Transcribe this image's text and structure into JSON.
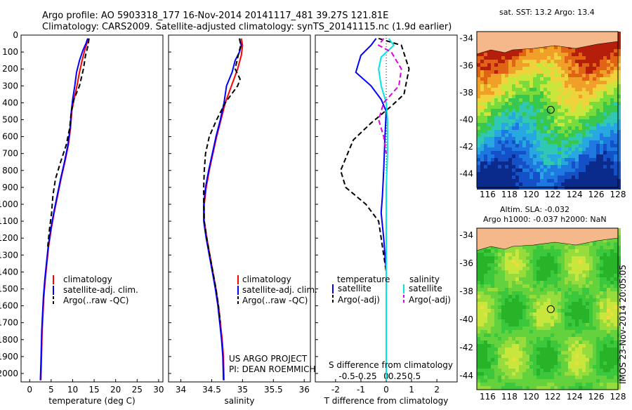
{
  "header": {
    "line1": "Argo profile: AO 5903318_177 16-Nov-2014 20141117_481 39.27S 121.81E",
    "line2": "Climatology: CARS2009. Satellite-adjusted climatology: synTS_20141115.nc (1.9d earlier)"
  },
  "side_text": "IMOS 23-Nov-2014 20:05:05",
  "credit": {
    "line1": "US ARGO PROJECT",
    "line2": "PI: DEAN ROEMMICH"
  },
  "colors": {
    "climatology": "#ff0000",
    "satellite": "#0000ff",
    "argo": "#000000",
    "sat_s": "#00e5e5",
    "argo_s": "#e000e0",
    "land": "#f4b88a"
  },
  "chart_data": [
    {
      "type": "line",
      "xlabel": "temperature (deg C)",
      "xticks": [
        0,
        5,
        10,
        15,
        20,
        25,
        30
      ],
      "xlim": [
        -2,
        31
      ],
      "ylim": [
        2050,
        0
      ],
      "yticks": [
        0,
        100,
        200,
        300,
        400,
        500,
        600,
        700,
        800,
        900,
        1000,
        1100,
        1200,
        1300,
        1400,
        1500,
        1600,
        1700,
        1800,
        1900,
        2000
      ],
      "legend": [
        "climatology",
        "satellite-adj. clim.",
        "Argo(..raw -QC)"
      ],
      "series": [
        {
          "name": "climatology",
          "style": "solid",
          "color": "#ff0000",
          "points": [
            [
              13.6,
              20
            ],
            [
              13.3,
              50
            ],
            [
              12.8,
              90
            ],
            [
              12.2,
              150
            ],
            [
              11.6,
              220
            ],
            [
              11.0,
              300
            ],
            [
              10.3,
              380
            ],
            [
              9.8,
              450
            ],
            [
              9.5,
              550
            ],
            [
              9.0,
              650
            ],
            [
              8.2,
              750
            ],
            [
              7.3,
              850
            ],
            [
              6.5,
              950
            ],
            [
              5.7,
              1050
            ],
            [
              5.0,
              1150
            ],
            [
              4.4,
              1250
            ],
            [
              4.0,
              1350
            ],
            [
              3.6,
              1450
            ],
            [
              3.3,
              1550
            ],
            [
              3.1,
              1650
            ],
            [
              2.9,
              1750
            ],
            [
              2.8,
              1850
            ],
            [
              2.7,
              1950
            ],
            [
              2.6,
              2040
            ]
          ]
        },
        {
          "name": "satellite-adj. clim.",
          "style": "solid",
          "color": "#0000ff",
          "points": [
            [
              13.5,
              20
            ],
            [
              13.1,
              50
            ],
            [
              12.4,
              90
            ],
            [
              11.6,
              150
            ],
            [
              10.9,
              220
            ],
            [
              10.5,
              300
            ],
            [
              10.0,
              380
            ],
            [
              9.7,
              450
            ],
            [
              9.4,
              550
            ],
            [
              8.9,
              650
            ],
            [
              8.1,
              750
            ],
            [
              7.2,
              850
            ],
            [
              6.4,
              950
            ],
            [
              5.6,
              1050
            ],
            [
              4.9,
              1150
            ],
            [
              4.3,
              1250
            ],
            [
              3.9,
              1350
            ],
            [
              3.5,
              1450
            ],
            [
              3.2,
              1550
            ],
            [
              3.0,
              1650
            ],
            [
              2.8,
              1750
            ],
            [
              2.7,
              1850
            ],
            [
              2.6,
              1950
            ],
            [
              2.5,
              2040
            ]
          ]
        },
        {
          "name": "Argo(..raw -QC)",
          "style": "dashed",
          "color": "#000000",
          "points": [
            [
              13.8,
              20
            ],
            [
              13.6,
              60
            ],
            [
              13.0,
              120
            ],
            [
              12.5,
              200
            ],
            [
              11.6,
              300
            ],
            [
              10.3,
              380
            ],
            [
              9.7,
              450
            ],
            [
              9.3,
              550
            ],
            [
              8.5,
              650
            ],
            [
              7.2,
              750
            ],
            [
              6.0,
              850
            ],
            [
              5.4,
              950
            ],
            [
              5.1,
              1050
            ],
            [
              4.6,
              1150
            ],
            [
              4.2,
              1250
            ]
          ]
        }
      ]
    },
    {
      "type": "line",
      "xlabel": "salinity",
      "xticks": [
        34,
        34.5,
        35,
        35.5,
        36
      ],
      "xlim": [
        33.8,
        36.1
      ],
      "ylim": [
        2050,
        0
      ],
      "legend": [
        "climatology",
        "satellite-adj. clim.",
        "Argo(..raw -QC)"
      ],
      "series": [
        {
          "name": "climatology",
          "style": "solid",
          "color": "#ff0000",
          "points": [
            [
              34.98,
              20
            ],
            [
              35.0,
              60
            ],
            [
              34.98,
              120
            ],
            [
              34.92,
              200
            ],
            [
              34.82,
              300
            ],
            [
              34.72,
              400
            ],
            [
              34.65,
              500
            ],
            [
              34.58,
              600
            ],
            [
              34.52,
              700
            ],
            [
              34.46,
              800
            ],
            [
              34.41,
              900
            ],
            [
              34.38,
              1000
            ],
            [
              34.38,
              1100
            ],
            [
              34.42,
              1200
            ],
            [
              34.47,
              1300
            ],
            [
              34.52,
              1400
            ],
            [
              34.57,
              1500
            ],
            [
              34.61,
              1600
            ],
            [
              34.64,
              1700
            ],
            [
              34.67,
              1800
            ],
            [
              34.69,
              1900
            ],
            [
              34.7,
              2040
            ]
          ]
        },
        {
          "name": "satellite-adj. clim.",
          "style": "solid",
          "color": "#0000ff",
          "points": [
            [
              34.95,
              20
            ],
            [
              34.98,
              60
            ],
            [
              34.95,
              100
            ],
            [
              34.88,
              150
            ],
            [
              34.83,
              220
            ],
            [
              34.74,
              300
            ],
            [
              34.7,
              400
            ],
            [
              34.64,
              500
            ],
            [
              34.57,
              600
            ],
            [
              34.51,
              700
            ],
            [
              34.45,
              800
            ],
            [
              34.4,
              900
            ],
            [
              34.37,
              1000
            ],
            [
              34.37,
              1100
            ],
            [
              34.41,
              1200
            ],
            [
              34.46,
              1300
            ],
            [
              34.51,
              1400
            ],
            [
              34.56,
              1500
            ],
            [
              34.6,
              1600
            ],
            [
              34.63,
              1700
            ],
            [
              34.66,
              1800
            ],
            [
              34.68,
              1900
            ],
            [
              34.69,
              2040
            ]
          ]
        },
        {
          "name": "Argo(..raw -QC)",
          "style": "dashed",
          "color": "#000000",
          "points": [
            [
              34.95,
              20
            ],
            [
              34.97,
              60
            ],
            [
              34.93,
              120
            ],
            [
              34.88,
              200
            ],
            [
              34.96,
              260
            ],
            [
              34.92,
              300
            ],
            [
              34.72,
              400
            ],
            [
              34.58,
              500
            ],
            [
              34.46,
              600
            ],
            [
              34.4,
              700
            ],
            [
              34.38,
              800
            ],
            [
              34.37,
              900
            ],
            [
              34.37,
              1000
            ],
            [
              34.38,
              1100
            ],
            [
              34.42,
              1200
            ],
            [
              34.47,
              1300
            ],
            [
              34.52,
              1400
            ],
            [
              34.57,
              1500
            ],
            [
              34.61,
              1600
            ],
            [
              34.64,
              1700
            ]
          ]
        }
      ]
    },
    {
      "type": "line",
      "xlabel": "T difference from climatology",
      "xlabel_top": "S difference from climatology",
      "xticks": [
        -2,
        -1,
        0,
        1,
        2
      ],
      "xticks_top": [
        "-0.5",
        "-0.25",
        "0",
        "0.25",
        "0.5"
      ],
      "xlim": [
        -2.8,
        2.8
      ],
      "ylim": [
        2050,
        0
      ],
      "legend_headers": [
        "temperature",
        "salinity"
      ],
      "legend": [
        "satellite",
        "Argo(-adj)",
        "satellite",
        "Argo(-adj)"
      ],
      "series": [
        {
          "name": "satellite",
          "style": "solid",
          "color": "#0000ff",
          "points": [
            [
              -0.4,
              20
            ],
            [
              -0.6,
              60
            ],
            [
              -1.0,
              120
            ],
            [
              -1.2,
              220
            ],
            [
              -0.6,
              300
            ],
            [
              -0.2,
              380
            ],
            [
              0.0,
              450
            ],
            [
              -0.05,
              600
            ],
            [
              -0.1,
              800
            ],
            [
              -0.15,
              950
            ],
            [
              -0.2,
              1050
            ],
            [
              -0.1,
              1200
            ],
            [
              0.0,
              1400
            ],
            [
              0.0,
              2040
            ]
          ]
        },
        {
          "name": "Argo(-adj)",
          "style": "dashed",
          "color": "#000000",
          "points": [
            [
              -0.3,
              20
            ],
            [
              0.6,
              60
            ],
            [
              0.9,
              200
            ],
            [
              0.7,
              350
            ],
            [
              0.2,
              420
            ],
            [
              -0.6,
              520
            ],
            [
              -1.3,
              620
            ],
            [
              -1.8,
              800
            ],
            [
              -1.6,
              900
            ],
            [
              -0.8,
              1000
            ],
            [
              -0.3,
              1100
            ],
            [
              -0.2,
              1200
            ],
            [
              -0.1,
              1300
            ],
            [
              0.0,
              1400
            ],
            [
              0.0,
              1500
            ]
          ]
        },
        {
          "name": "satellite",
          "style": "solid",
          "color": "#00e5e5",
          "points": [
            [
              0.1,
              20
            ],
            [
              0.3,
              60
            ],
            [
              -0.2,
              130
            ],
            [
              -0.3,
              200
            ],
            [
              -0.2,
              300
            ],
            [
              0.0,
              400
            ],
            [
              0.05,
              500
            ],
            [
              0.05,
              700
            ],
            [
              0.0,
              900
            ],
            [
              0.0,
              2040
            ]
          ]
        },
        {
          "name": "Argo(-adj)",
          "style": "dashed",
          "color": "#e000e0",
          "points": [
            [
              -0.1,
              20
            ],
            [
              -0.3,
              60
            ],
            [
              0.2,
              100
            ],
            [
              0.6,
              200
            ],
            [
              0.5,
              300
            ],
            [
              -0.1,
              400
            ],
            [
              -0.3,
              500
            ],
            [
              -0.1,
              600
            ],
            [
              0.0,
              700
            ]
          ]
        }
      ]
    }
  ],
  "maps": [
    {
      "title": "sat. SST: 13.2 Argo: 13.4",
      "xticks": [
        "116",
        "118",
        "120",
        "122",
        "124",
        "126",
        "128"
      ],
      "yticks": [
        "-34",
        "-36",
        "-38",
        "-40",
        "-42",
        "-44"
      ],
      "palette": [
        "#0a2a8c",
        "#1450c8",
        "#1e78e0",
        "#28a8e0",
        "#30c8b4",
        "#38c850",
        "#7adc3c",
        "#c8e63c",
        "#f0d23c",
        "#f0a028",
        "#e06414",
        "#b41e0a"
      ]
    },
    {
      "title": "Altim. SLA: -0.032",
      "subtitle": "Argo h1000: -0.037 h2000: NaN",
      "xticks": [
        "116",
        "118",
        "120",
        "122",
        "124",
        "126",
        "128"
      ],
      "yticks": [
        "-34",
        "-36",
        "-38",
        "-40",
        "-42",
        "-44"
      ],
      "palette": [
        "#28b428",
        "#3cc83c",
        "#64d23c",
        "#96dc3c",
        "#c8e63c",
        "#f0dc3c"
      ]
    }
  ]
}
